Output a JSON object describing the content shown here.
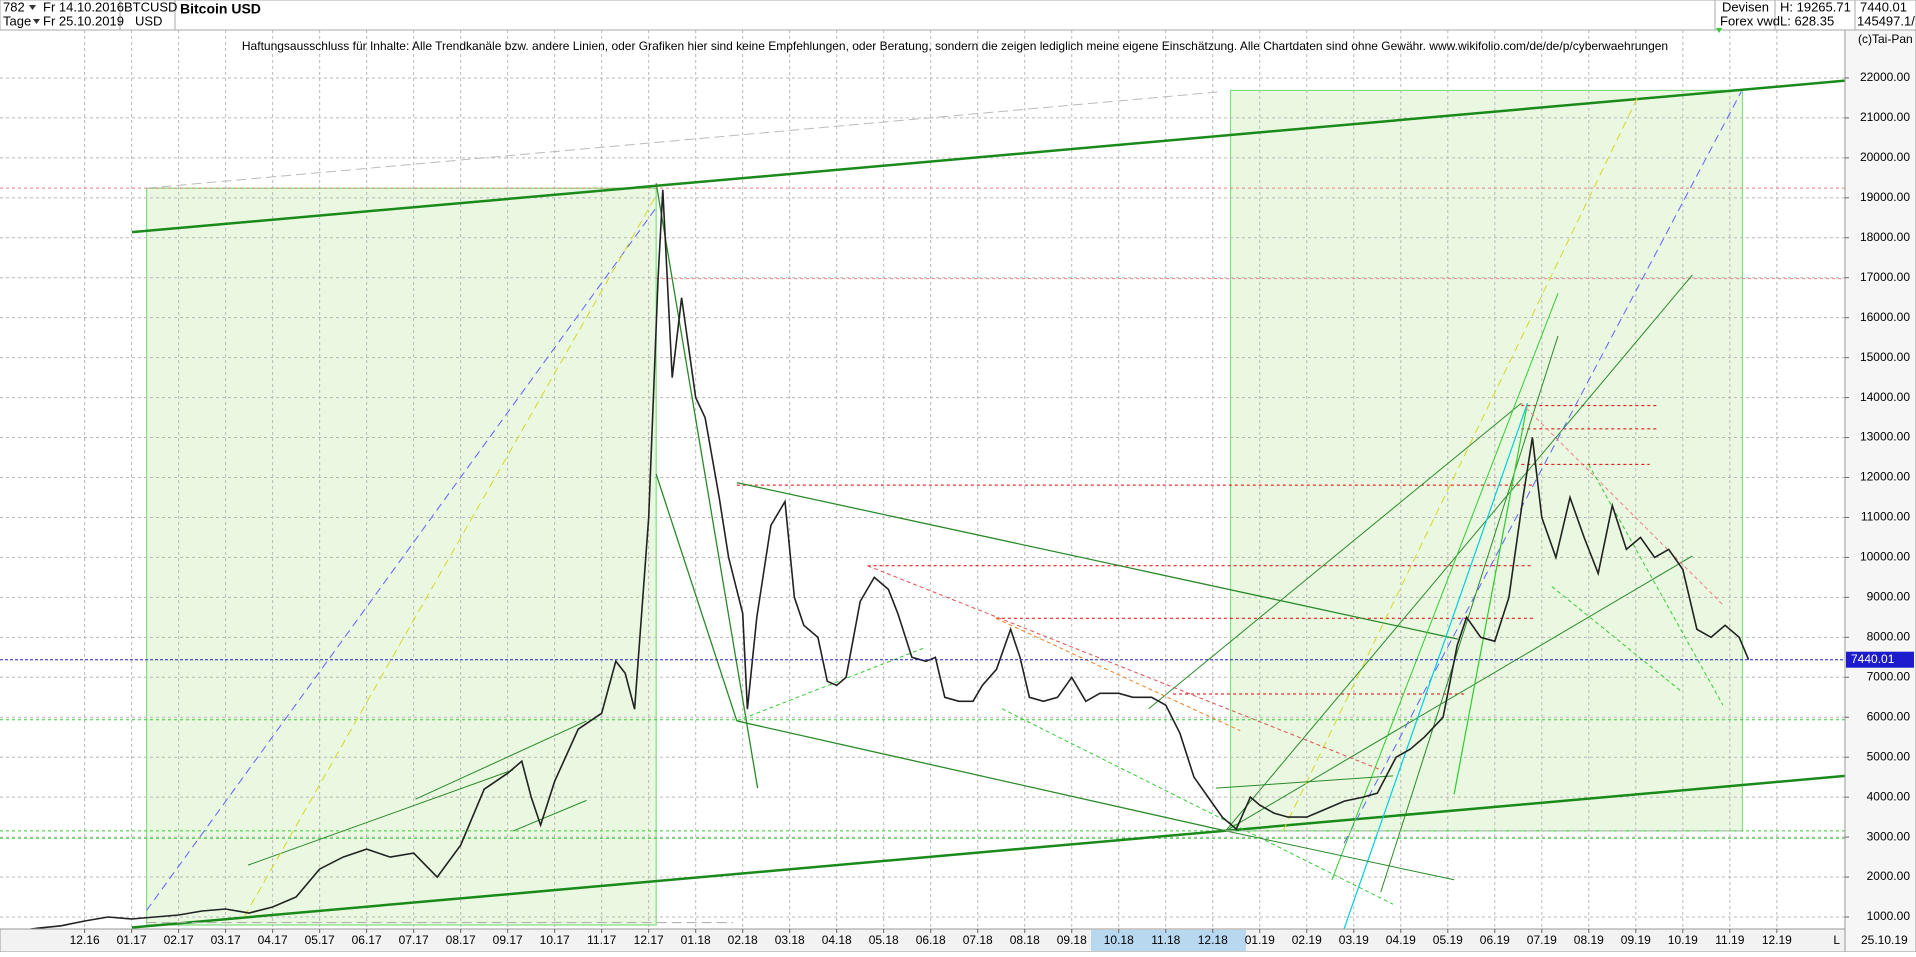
{
  "header": {
    "count": "782",
    "period": "Tage",
    "date_from": "Fr 14.10.2016",
    "date_to": "Fr 25.10.2019",
    "symbol": "BTCUSD",
    "currency": "USD",
    "name": "Bitcoin USD",
    "market": "Devisen",
    "source": "Forex vwd",
    "high": "H: 19265.71",
    "low": "L: 628.35",
    "volume": "145497.1/"
  },
  "chart_data": {
    "type": "line",
    "subtitle": "Haftungsausschluss für Inhalte: Alle Trendkanäle bzw. andere Linien, oder Grafiken hier sind keine Empfehlungen, oder Beratung, sondern die zeigen lediglich meine eigene Einschätzung. Alle Chartdaten sind ohne Gewähr.  www.wikifolio.com/de/de/p/cyberwaehrungen",
    "copyright": "(c)Tai-Pan",
    "end_date_label": "25.10.19",
    "axis_end_label": "L",
    "last_price": 7440.01,
    "color": "#222222",
    "x": [
      -1.5,
      -1,
      -0.5,
      0,
      0.5,
      1,
      1.5,
      2,
      2.5,
      3,
      3.5,
      4,
      4.5,
      5,
      5.5,
      6,
      6.5,
      7,
      7.5,
      8,
      8.5,
      9,
      9.3,
      9.5,
      9.7,
      10,
      10.5,
      11,
      11.3,
      11.5,
      11.7,
      12,
      12.2,
      12.3,
      12.5,
      12.7,
      13,
      13.2,
      13.5,
      13.7,
      14,
      14.1,
      14.3,
      14.6,
      14.9,
      15.1,
      15.3,
      15.6,
      15.8,
      16,
      16.2,
      16.5,
      16.8,
      17.1,
      17.3,
      17.6,
      17.9,
      18.1,
      18.3,
      18.6,
      18.9,
      19.1,
      19.4,
      19.7,
      19.9,
      20.1,
      20.4,
      20.7,
      21,
      21.3,
      21.6,
      22,
      22.3,
      22.7,
      23,
      23.3,
      23.6,
      23.9,
      24.2,
      24.5,
      24.8,
      25,
      25.3,
      25.6,
      26,
      26.4,
      26.8,
      27.2,
      27.5,
      27.9,
      28.2,
      28.5,
      28.9,
      29.2,
      29.4,
      29.7,
      30,
      30.3,
      30.6,
      30.8,
      31,
      31.3,
      31.6,
      31.9,
      32.2,
      32.5,
      32.8,
      33.1,
      33.4,
      33.7,
      34,
      34.3,
      34.6,
      34.9,
      35.2,
      35.4
    ],
    "values": [
      640,
      720,
      780,
      900,
      1000,
      950,
      1000,
      1050,
      1150,
      1200,
      1100,
      1250,
      1500,
      2200,
      2500,
      2700,
      2500,
      2600,
      2000,
      2800,
      4200,
      4600,
      4900,
      4000,
      3300,
      4400,
      5700,
      6100,
      7400,
      7100,
      6200,
      11000,
      17000,
      19200,
      14500,
      16500,
      14000,
      13500,
      11500,
      10000,
      8600,
      6200,
      8500,
      10800,
      11400,
      9000,
      8300,
      8000,
      6900,
      6800,
      7000,
      8900,
      9500,
      9200,
      8600,
      7500,
      7400,
      7500,
      6500,
      6400,
      6400,
      6800,
      7200,
      8200,
      7500,
      6500,
      6400,
      6500,
      7000,
      6400,
      6600,
      6600,
      6500,
      6500,
      6300,
      5600,
      4500,
      4000,
      3500,
      3200,
      4000,
      3800,
      3600,
      3500,
      3500,
      3700,
      3900,
      4000,
      4100,
      5000,
      5200,
      5500,
      6000,
      7800,
      8500,
      8000,
      7900,
      9000,
      11500,
      13000,
      11000,
      10000,
      11500,
      10500,
      9600,
      11300,
      10200,
      10500,
      10000,
      10200,
      9700,
      8200,
      8000,
      8300,
      8000,
      7440
    ],
    "xlim": [
      -1.8,
      37.45
    ],
    "ylim": [
      700,
      23200
    ],
    "grid": true,
    "xticks": [
      {
        "value": 0,
        "label": "12.16"
      },
      {
        "value": 1,
        "label": "01.17"
      },
      {
        "value": 2,
        "label": "02.17"
      },
      {
        "value": 3,
        "label": "03.17"
      },
      {
        "value": 4,
        "label": "04.17"
      },
      {
        "value": 5,
        "label": "05.17"
      },
      {
        "value": 6,
        "label": "06.17"
      },
      {
        "value": 7,
        "label": "07.17"
      },
      {
        "value": 8,
        "label": "08.17"
      },
      {
        "value": 9,
        "label": "09.17"
      },
      {
        "value": 10,
        "label": "10.17"
      },
      {
        "value": 11,
        "label": "11.17"
      },
      {
        "value": 12,
        "label": "12.17"
      },
      {
        "value": 13,
        "label": "01.18"
      },
      {
        "value": 14,
        "label": "02.18"
      },
      {
        "value": 15,
        "label": "03.18"
      },
      {
        "value": 16,
        "label": "04.18"
      },
      {
        "value": 17,
        "label": "05.18"
      },
      {
        "value": 18,
        "label": "06.18"
      },
      {
        "value": 19,
        "label": "07.18"
      },
      {
        "value": 20,
        "label": "08.18"
      },
      {
        "value": 21,
        "label": "09.18"
      },
      {
        "value": 22,
        "label": "10.18"
      },
      {
        "value": 23,
        "label": "11.18"
      },
      {
        "value": 24,
        "label": "12.18"
      },
      {
        "value": 25,
        "label": "01.19"
      },
      {
        "value": 26,
        "label": "02.19"
      },
      {
        "value": 27,
        "label": "03.19"
      },
      {
        "value": 28,
        "label": "04.19"
      },
      {
        "value": 29,
        "label": "05.19"
      },
      {
        "value": 30,
        "label": "06.19"
      },
      {
        "value": 31,
        "label": "07.19"
      },
      {
        "value": 32,
        "label": "08.19"
      },
      {
        "value": 33,
        "label": "09.19"
      },
      {
        "value": 34,
        "label": "10.19"
      },
      {
        "value": 35,
        "label": "11.19"
      },
      {
        "value": 36,
        "label": "12.19"
      }
    ],
    "yticks": [
      {
        "value": 1000,
        "label": "1000.00"
      },
      {
        "value": 2000,
        "label": "2000.00"
      },
      {
        "value": 3000,
        "label": "3000.00"
      },
      {
        "value": 4000,
        "label": "4000.00"
      },
      {
        "value": 5000,
        "label": "5000.00"
      },
      {
        "value": 6000,
        "label": "6000.00"
      },
      {
        "value": 7000,
        "label": "7000.00"
      },
      {
        "value": 8000,
        "label": "8000.00"
      },
      {
        "value": 9000,
        "label": "9000.00"
      },
      {
        "value": 10000,
        "label": "10000.00"
      },
      {
        "value": 11000,
        "label": "11000.00"
      },
      {
        "value": 12000,
        "label": "12000.00"
      },
      {
        "value": 13000,
        "label": "13000.00"
      },
      {
        "value": 14000,
        "label": "14000.00"
      },
      {
        "value": 15000,
        "label": "15000.00"
      },
      {
        "value": 16000,
        "label": "16000.00"
      },
      {
        "value": 17000,
        "label": "17000.00"
      },
      {
        "value": 18000,
        "label": "18000.00"
      },
      {
        "value": 19000,
        "label": "19000.00"
      },
      {
        "value": 20000,
        "label": "20000.00"
      },
      {
        "value": 21000,
        "label": "21000.00"
      },
      {
        "value": 22000,
        "label": "22000.00"
      }
    ]
  }
}
